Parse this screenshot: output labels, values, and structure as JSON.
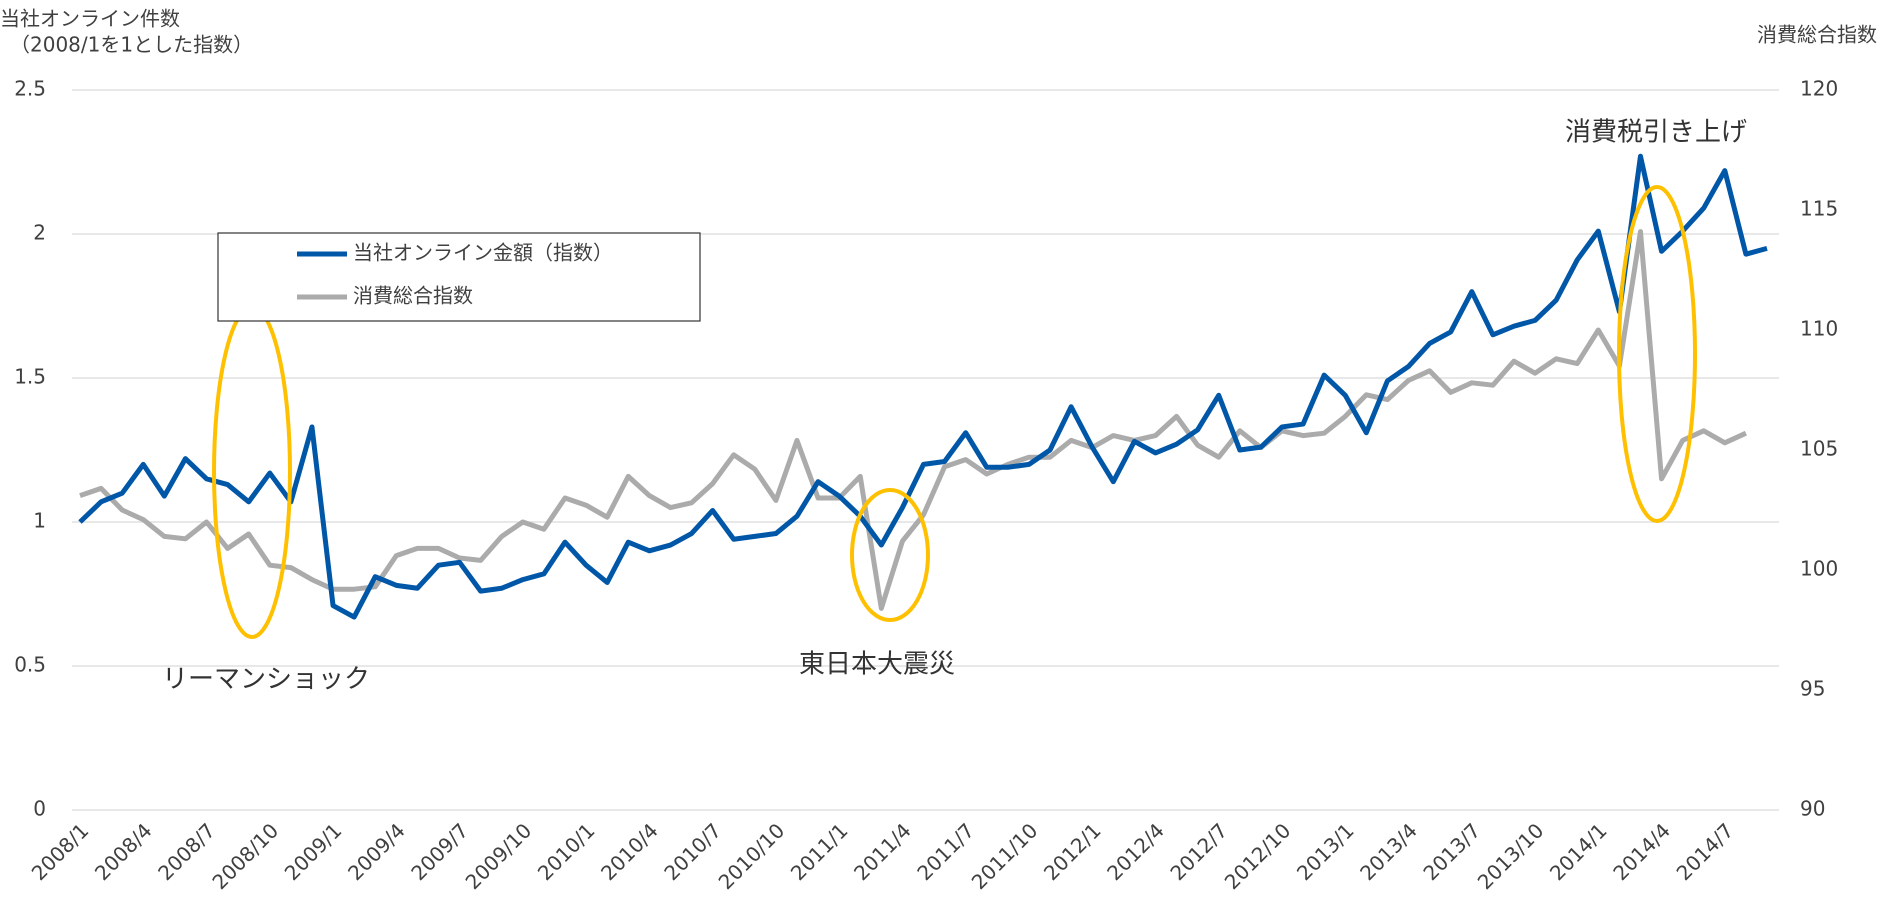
{
  "chart_data": {
    "type": "line",
    "ylabel": [
      "当社オンライン件数",
      "（2008/1を1とした指数）"
    ],
    "y2label": "消費総合指数",
    "categories": [
      "2008/1",
      null,
      null,
      "2008/4",
      null,
      null,
      "2008/7",
      null,
      null,
      "2008/10",
      null,
      null,
      "2009/1",
      null,
      null,
      "2009/4",
      null,
      null,
      "2009/7",
      null,
      null,
      "2009/10",
      null,
      null,
      "2010/1",
      null,
      null,
      "2010/4",
      null,
      null,
      "2010/7",
      null,
      null,
      "2010/10",
      null,
      null,
      "2011/1",
      null,
      null,
      "2011/4",
      null,
      null,
      "2011/7",
      null,
      null,
      "2011/10",
      null,
      null,
      "2012/1",
      null,
      null,
      "2012/4",
      null,
      null,
      "2012/7",
      null,
      null,
      "2012/10",
      null,
      null,
      "2013/1",
      null,
      null,
      "2013/4",
      null,
      null,
      "2013/7",
      null,
      null,
      "2013/10",
      null,
      null,
      "2014/1",
      null,
      null,
      "2014/4",
      null,
      null,
      "2014/7",
      null,
      null
    ],
    "series": [
      {
        "name": "当社オンライン金額（指数）",
        "color": "#0057a8",
        "values": [
          1.0,
          1.07,
          1.1,
          1.2,
          1.09,
          1.22,
          1.15,
          1.13,
          1.07,
          1.17,
          1.07,
          1.33,
          0.71,
          0.67,
          0.81,
          0.78,
          0.77,
          0.85,
          0.86,
          0.76,
          0.77,
          0.8,
          0.82,
          0.93,
          0.85,
          0.79,
          0.93,
          0.9,
          0.92,
          0.96,
          1.04,
          0.94,
          0.95,
          0.96,
          1.02,
          1.14,
          1.09,
          1.02,
          0.92,
          1.05,
          1.2,
          1.21,
          1.31,
          1.19,
          1.19,
          1.2,
          1.25,
          1.4,
          1.26,
          1.14,
          1.28,
          1.24,
          1.27,
          1.32,
          1.44,
          1.25,
          1.26,
          1.33,
          1.34,
          1.51,
          1.44,
          1.31,
          1.49,
          1.54,
          1.62,
          1.66,
          1.8,
          1.65,
          1.68,
          1.7,
          1.77,
          1.91,
          2.01,
          1.73,
          2.27,
          1.94,
          2.01,
          2.09,
          2.22,
          1.93,
          1.95
        ]
      },
      {
        "name": "消費総合指数",
        "color": "#ababab",
        "axis": "y2",
        "values": [
          103.1,
          103.4,
          102.5,
          102.1,
          101.4,
          101.3,
          102.0,
          100.9,
          101.5,
          100.2,
          100.1,
          99.6,
          99.2,
          99.2,
          99.3,
          100.6,
          100.9,
          100.9,
          100.5,
          100.4,
          101.4,
          102.0,
          101.7,
          103.0,
          102.7,
          102.2,
          103.9,
          103.1,
          102.6,
          102.8,
          103.6,
          104.8,
          104.2,
          102.9,
          105.4,
          103.0,
          103.0,
          103.9,
          98.4,
          101.2,
          102.3,
          104.3,
          104.6,
          104.0,
          104.4,
          104.7,
          104.7,
          105.4,
          105.1,
          105.6,
          105.4,
          105.6,
          106.4,
          105.2,
          104.7,
          105.8,
          105.1,
          105.8,
          105.6,
          105.7,
          106.4,
          107.3,
          107.1,
          107.9,
          108.3,
          107.4,
          107.8,
          107.7,
          108.7,
          108.2,
          108.8,
          108.6,
          110.0,
          108.5,
          114.1,
          103.8,
          105.4,
          105.8,
          105.3,
          105.7,
          null
        ]
      }
    ],
    "ylim": [
      0,
      2.5
    ],
    "yticks": [
      0,
      0.5,
      1,
      1.5,
      2,
      2.5
    ],
    "y2lim": [
      90,
      120
    ],
    "y2ticks": [
      90,
      95,
      100,
      105,
      110,
      115,
      120
    ],
    "grid": true,
    "annotations": [
      "リーマンショック",
      "東日本大震災",
      "消費税引き上げ"
    ]
  }
}
